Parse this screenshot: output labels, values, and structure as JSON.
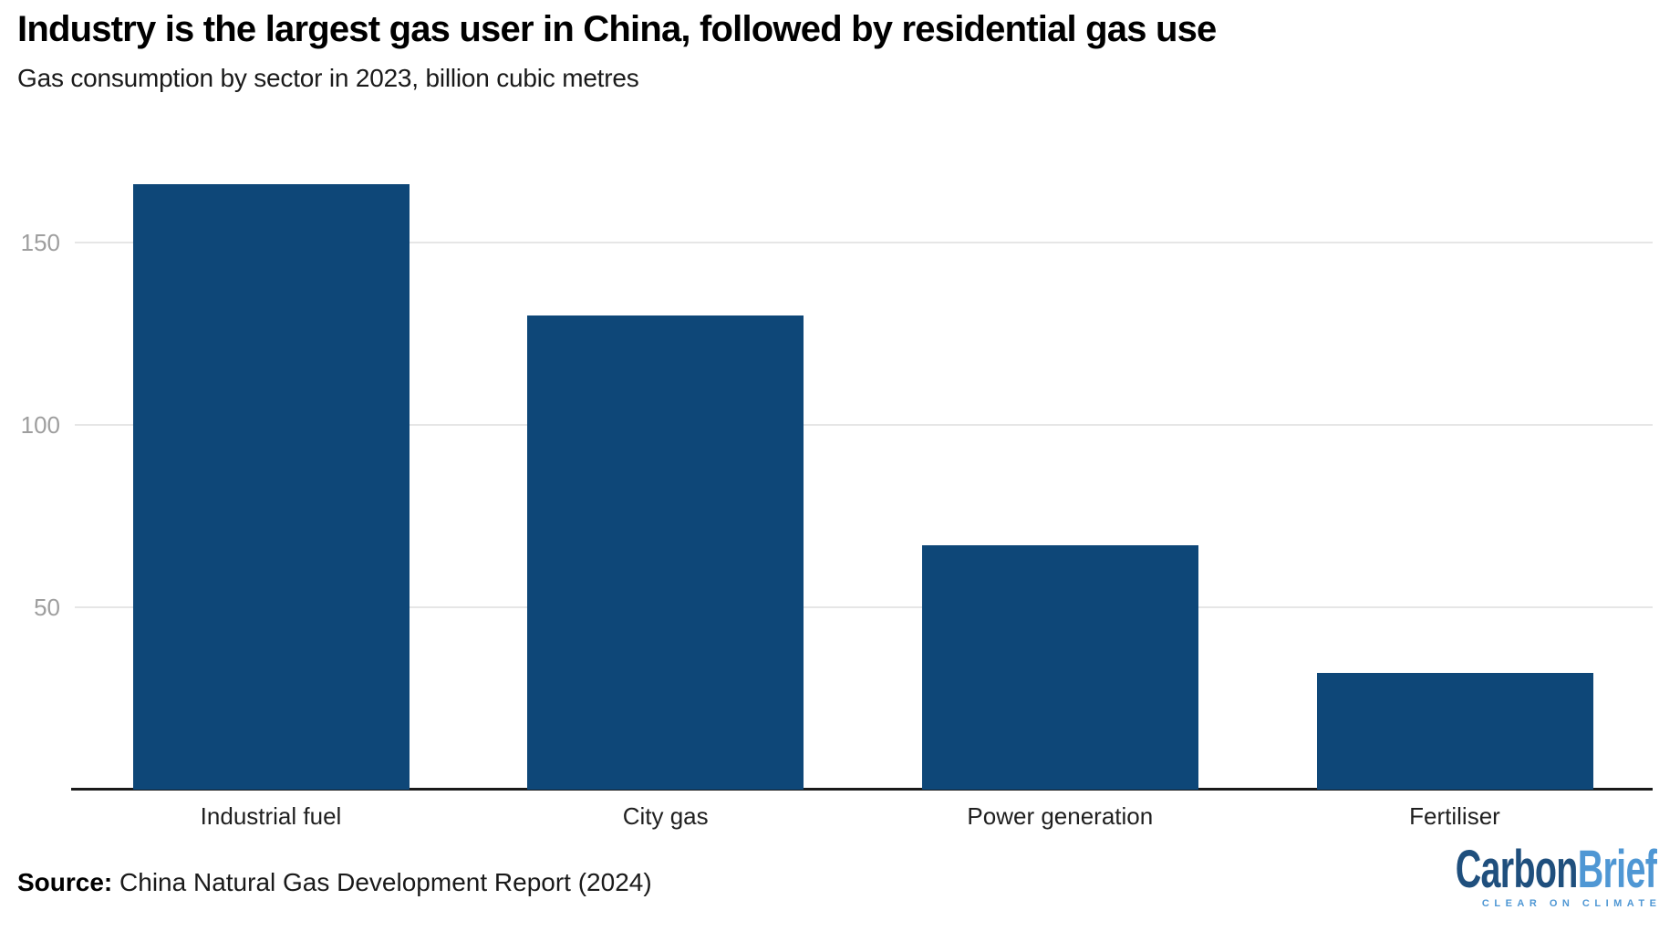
{
  "chart_data": {
    "type": "bar",
    "title": "Industry is the largest gas user in China, followed by residential gas use",
    "subtitle": "Gas consumption by sector in 2023, billion cubic metres",
    "categories": [
      "Industrial fuel",
      "City gas",
      "Power generation",
      "Fertiliser"
    ],
    "values": [
      166,
      130,
      67,
      32
    ],
    "unit": "billion cubic metres",
    "ylim": [
      0,
      180
    ],
    "yticks": [
      50,
      100,
      150
    ],
    "grid": "horizontal gridlines, behind bars",
    "legend": "none"
  },
  "footer": {
    "source_label": "Source:",
    "source_text": "China Natural Gas Development Report (2024)"
  },
  "logo": {
    "part1": "Carbon",
    "part2": "Brief",
    "tagline": "CLEAR ON CLIMATE"
  },
  "colors": {
    "bar": "#0e4778",
    "gridline": "#e6e6e6",
    "axis_line": "#1a1a1a",
    "tick_label": "#9e9e9e",
    "category_label": "#1f1f1f",
    "logo_dark": "#1f4f7d",
    "logo_light": "#4f97d4"
  }
}
